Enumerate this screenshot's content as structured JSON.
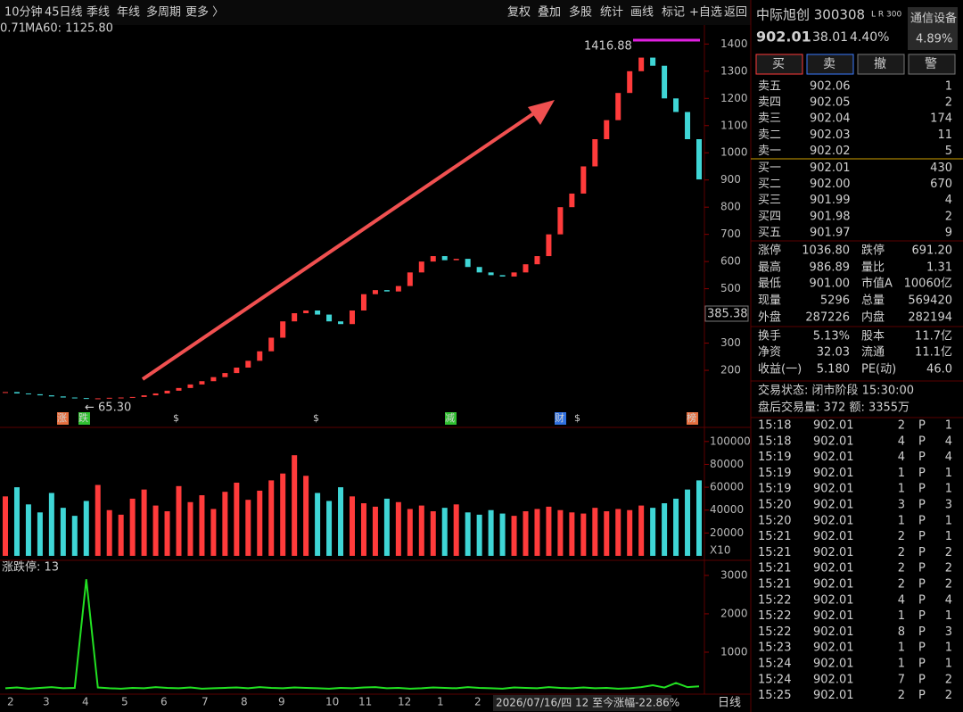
{
  "toolbar": {
    "left": [
      "10分钟",
      "45日线",
      "季线",
      "年线",
      "多周期",
      "更多 〉"
    ],
    "right": [
      "复权",
      "叠加",
      "多股",
      "统计",
      "画线",
      "标记",
      "+自选",
      "返回"
    ]
  },
  "chart_data": [
    {
      "type": "candle",
      "ma_partial": "0.71",
      "ma60_label": "MA60: 1125.80",
      "up_color": "#ff3b3b",
      "down_color": "#3fd6d6",
      "values": [
        120,
        115,
        112,
        108,
        104,
        100,
        98,
        96,
        97,
        99,
        100,
        102,
        108,
        115,
        125,
        135,
        148,
        160,
        175,
        190,
        210,
        235,
        270,
        320,
        380,
        410,
        420,
        405,
        380,
        370,
        420,
        480,
        495,
        490,
        510,
        560,
        600,
        620,
        605,
        610,
        580,
        560,
        550,
        545,
        560,
        590,
        620,
        700,
        800,
        850,
        950,
        1050,
        1120,
        1220,
        1300,
        1350,
        1320,
        1200,
        1150,
        1050,
        902
      ],
      "ylim": [
        0,
        1470
      ],
      "yticks": [
        200,
        300,
        500,
        600,
        700,
        800,
        900,
        1000,
        1100,
        1200,
        1300,
        1400
      ],
      "annotations": {
        "high": "1416.88",
        "low": "← 65.30",
        "cursor": "385.38"
      },
      "markers": [
        "涨",
        "跌",
        "$",
        "$",
        "减",
        "财",
        "$",
        "榜"
      ]
    },
    {
      "type": "bar",
      "values": [
        52000,
        60000,
        45000,
        38000,
        55000,
        42000,
        35000,
        48000,
        62000,
        40000,
        36000,
        50000,
        58000,
        44000,
        39000,
        61000,
        47000,
        53000,
        41000,
        56000,
        64000,
        49000,
        57000,
        66000,
        72000,
        88000,
        70000,
        55000,
        48000,
        60000,
        52000,
        46000,
        43000,
        50000,
        47000,
        41000,
        44000,
        39000,
        42000,
        45000,
        38000,
        36000,
        40000,
        37000,
        35000,
        39000,
        41000,
        43000,
        40000,
        38000,
        37000,
        42000,
        39000,
        41000,
        40000,
        44000,
        42000,
        46000,
        50000,
        58000,
        66000
      ],
      "ylim": [
        0,
        110000
      ],
      "yticks": [
        20000,
        40000,
        60000,
        80000,
        100000
      ],
      "unit_label": "X10"
    },
    {
      "type": "line",
      "title": "涨跌停: 13",
      "color": "#22e022",
      "values": [
        60,
        80,
        50,
        70,
        90,
        60,
        70,
        2900,
        80,
        60,
        50,
        70,
        60,
        90,
        70,
        60,
        80,
        50,
        60,
        70,
        80,
        60,
        90,
        70,
        60,
        80,
        70,
        60,
        50,
        70,
        60,
        80,
        90,
        60,
        70,
        50,
        60,
        80,
        70,
        60,
        90,
        70,
        60,
        50,
        80,
        70,
        60,
        90,
        70,
        60,
        80,
        60,
        70,
        50,
        60,
        90,
        140,
        80,
        200,
        90,
        110
      ],
      "ylim": [
        0,
        3300
      ],
      "yticks": [
        1000,
        2000,
        3000
      ]
    }
  ],
  "x_axis": {
    "labels": [
      "2",
      "3",
      "4",
      "5",
      "6",
      "7",
      "8",
      "9",
      "10",
      "11",
      "12",
      "1",
      "2"
    ],
    "range_label": "2026/07/16/四 12 至今涨幅-22.86%",
    "period": "日线"
  },
  "quote": {
    "name": "中际旭创 300308",
    "flags": "L R 300",
    "sector": "通信设备",
    "sector_change": "4.89%",
    "price": "902.01",
    "change": "38.01",
    "change_pct": "4.40%",
    "buttons": [
      "买",
      "卖",
      "撤",
      "警"
    ],
    "book": [
      [
        "卖五",
        "902.06",
        "1"
      ],
      [
        "卖四",
        "902.05",
        "2"
      ],
      [
        "卖三",
        "902.04",
        "174"
      ],
      [
        "卖二",
        "902.03",
        "11"
      ],
      [
        "卖一",
        "902.02",
        "5"
      ],
      [
        "买一",
        "902.01",
        "430"
      ],
      [
        "买二",
        "902.00",
        "670"
      ],
      [
        "买三",
        "901.99",
        "4"
      ],
      [
        "买四",
        "901.98",
        "2"
      ],
      [
        "买五",
        "901.97",
        "9"
      ]
    ],
    "stats": [
      [
        "涨停",
        "1036.80",
        "跌停",
        "691.20"
      ],
      [
        "最高",
        "986.89",
        "量比",
        "1.31"
      ],
      [
        "最低",
        "901.00",
        "市值A",
        "10060亿"
      ],
      [
        "现量",
        "5296",
        "总量",
        "569420"
      ],
      [
        "外盘",
        "287226",
        "内盘",
        "282194"
      ],
      [
        "换手",
        "5.13%",
        "股本",
        "11.7亿"
      ],
      [
        "净资",
        "32.03",
        "流通",
        "11.1亿"
      ],
      [
        "收益(一)",
        "5.180",
        "PE(动)",
        "46.0"
      ]
    ],
    "status": "交易状态: 闭市阶段 15:30:00",
    "after_hours": "盘后交易量: 372 额: 3355万",
    "ticks": [
      [
        "15:18",
        "902.01",
        "2",
        "P",
        "1"
      ],
      [
        "15:18",
        "902.01",
        "4",
        "P",
        "4"
      ],
      [
        "15:19",
        "902.01",
        "4",
        "P",
        "4"
      ],
      [
        "15:19",
        "902.01",
        "1",
        "P",
        "1"
      ],
      [
        "15:19",
        "902.01",
        "1",
        "P",
        "1"
      ],
      [
        "15:20",
        "902.01",
        "3",
        "P",
        "3"
      ],
      [
        "15:20",
        "902.01",
        "1",
        "P",
        "1"
      ],
      [
        "15:21",
        "902.01",
        "2",
        "P",
        "1"
      ],
      [
        "15:21",
        "902.01",
        "2",
        "P",
        "2"
      ],
      [
        "15:21",
        "902.01",
        "2",
        "P",
        "2"
      ],
      [
        "15:21",
        "902.01",
        "2",
        "P",
        "2"
      ],
      [
        "15:22",
        "902.01",
        "4",
        "P",
        "4"
      ],
      [
        "15:22",
        "902.01",
        "1",
        "P",
        "1"
      ],
      [
        "15:22",
        "902.01",
        "8",
        "P",
        "3"
      ],
      [
        "15:23",
        "902.01",
        "1",
        "P",
        "1"
      ],
      [
        "15:24",
        "902.01",
        "1",
        "P",
        "1"
      ],
      [
        "15:24",
        "902.01",
        "7",
        "P",
        "2"
      ],
      [
        "15:25",
        "902.01",
        "2",
        "P",
        "2"
      ]
    ]
  }
}
